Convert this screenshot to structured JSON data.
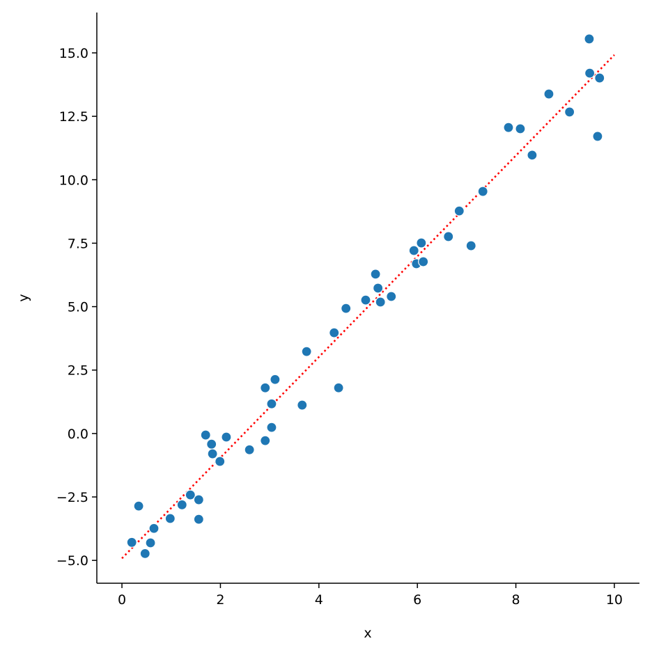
{
  "chart_data": {
    "type": "scatter",
    "xlabel": "x",
    "ylabel": "y",
    "xlim": [
      -0.51,
      10.51
    ],
    "ylim": [
      -5.9,
      16.59
    ],
    "xticks": [
      0,
      2,
      4,
      6,
      8,
      10
    ],
    "yticks": [
      {
        "value": -5,
        "label": "−5.0"
      },
      {
        "value": -2.5,
        "label": "−2.5"
      },
      {
        "value": 0,
        "label": "0.0"
      },
      2.5,
      {
        "value": 5,
        "label": "5.0"
      },
      7.5,
      {
        "value": 10,
        "label": "10.0"
      },
      12.5,
      {
        "value": 15,
        "label": "15.0"
      }
    ],
    "series": [
      {
        "color": "#1f77b4",
        "x": [
          0.2,
          0.34,
          0.47,
          0.58,
          0.65,
          0.98,
          1.22,
          1.39,
          1.56,
          1.56,
          1.7,
          1.82,
          1.84,
          1.99,
          2.12,
          2.59,
          2.91,
          2.91,
          3.04,
          3.04,
          3.11,
          3.66,
          3.75,
          4.31,
          4.4,
          4.55,
          4.95,
          5.15,
          5.2,
          5.25,
          5.47,
          5.93,
          5.98,
          6.08,
          6.12,
          6.63,
          6.85,
          7.09,
          7.33,
          7.85,
          8.09,
          8.33,
          8.67,
          9.09,
          9.49,
          9.5,
          9.66,
          9.7
        ],
        "y": [
          -4.29,
          -2.86,
          -4.73,
          -4.31,
          -3.74,
          -3.35,
          -2.81,
          -2.42,
          -2.61,
          -3.38,
          -0.06,
          -0.42,
          -0.8,
          -1.1,
          -0.14,
          -0.64,
          1.8,
          -0.28,
          1.17,
          0.24,
          2.13,
          1.12,
          3.23,
          3.97,
          1.8,
          4.93,
          5.26,
          6.28,
          5.73,
          5.18,
          5.4,
          7.21,
          6.69,
          7.51,
          6.77,
          7.76,
          8.77,
          7.4,
          9.54,
          12.06,
          12.01,
          10.97,
          13.38,
          12.67,
          15.55,
          14.2,
          11.71,
          14.01
        ]
      }
    ],
    "fit": {
      "x": [
        0,
        10
      ],
      "y": [
        -4.92,
        14.92
      ],
      "color": "#ff0000",
      "style": "dotted"
    }
  }
}
